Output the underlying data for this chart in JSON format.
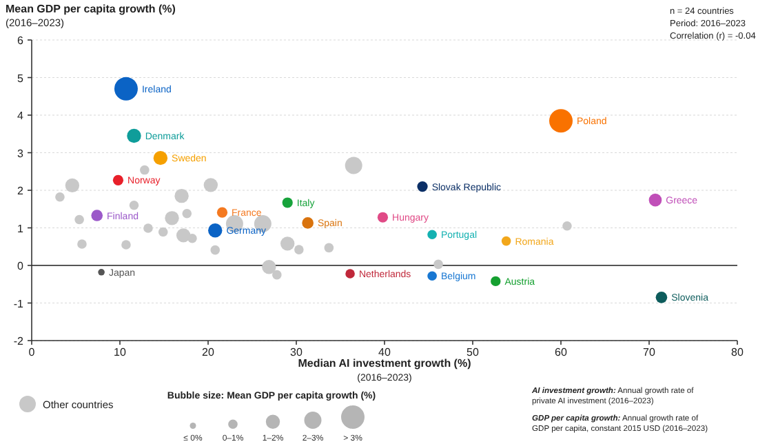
{
  "chart_data": {
    "type": "bubble",
    "xlabel": "Median AI investment growth (%)\n(2016–2023)",
    "ylabel": "Mean GDP per capita growth (%)\n(2016–2023)",
    "xlim": [
      0,
      80
    ],
    "ylim": [
      -2,
      6
    ],
    "xticks": [
      0,
      10,
      20,
      30,
      40,
      50,
      60,
      70,
      80
    ],
    "yticks": [
      -2,
      -1,
      0,
      1,
      2,
      3,
      4,
      5,
      6
    ],
    "grid": "y",
    "marker": "circle",
    "legend": "bottom left",
    "legend_title": "Bubble size: Mean GDP per capita growth (%)",
    "size_legend": [
      {
        "value": 0.07,
        "label": "≤ 0%"
      },
      {
        "value": 0.16,
        "label": "0–1%"
      },
      {
        "value": 0.36,
        "label": "1–2%"
      },
      {
        "value": 0.54,
        "label": "2–3%"
      },
      {
        "value": 1,
        "label": "> 3%"
      }
    ],
    "ref_lines": [
      {
        "axis": "y",
        "value": 0,
        "color": "#555555"
      }
    ],
    "annotations": [
      "n = 24 countries",
      "Period: 2016–2023",
      "Correlation (r) = -0.04",
      "AI investment growth: Annual growth rate of private AI investment (2016–2023)",
      "GDP per capita growth: Annual growth rate of GDP per capita, constant 2015 USD (2016–2023)"
    ],
    "series": [
      {
        "name": "Other countries",
        "color": "#c8c8c8",
        "x": [
          36.5,
          12.8,
          4.6,
          20.3,
          3.2,
          17,
          11.6,
          5.4,
          15.9,
          17.6,
          23,
          26.2,
          13.2,
          14.9,
          17.2,
          18.2,
          5.7,
          10.7,
          20.8,
          29,
          30.3,
          33.7,
          26.9,
          27.8,
          60.7,
          46.1
        ],
        "values": [
          2.66,
          2.54,
          2.13,
          2.14,
          1.82,
          1.85,
          1.6,
          1.22,
          1.26,
          1.38,
          1.11,
          1.11,
          0.99,
          0.89,
          0.8,
          0.72,
          0.57,
          0.55,
          0.41,
          0.58,
          0.42,
          0.47,
          -0.04,
          -0.25,
          1.05,
          0.03
        ],
        "sizes": [
          0.54,
          0.16,
          0.36,
          0.36,
          0.16,
          0.36,
          0.16,
          0.16,
          0.36,
          0.16,
          0.54,
          0.54,
          0.16,
          0.16,
          0.36,
          0.16,
          0.16,
          0.16,
          0.16,
          0.36,
          0.16,
          0.16,
          0.36,
          0.16,
          0.16,
          0.16
        ]
      },
      {
        "name": "Ireland",
        "color": "#0b63c5",
        "x": [
          10.7
        ],
        "values": [
          4.7
        ],
        "sizes": [
          1
        ]
      },
      {
        "name": "Denmark",
        "color": "#0f9d9a",
        "x": [
          11.6
        ],
        "values": [
          3.45
        ],
        "sizes": [
          0.36
        ]
      },
      {
        "name": "Sweden",
        "color": "#f5a000",
        "x": [
          14.6
        ],
        "values": [
          2.86
        ],
        "sizes": [
          0.36
        ]
      },
      {
        "name": "Norway",
        "color": "#e8202a",
        "x": [
          9.8
        ],
        "values": [
          2.27
        ],
        "sizes": [
          0.2
        ]
      },
      {
        "name": "Finland",
        "color": "#9b59c9",
        "x": [
          7.4
        ],
        "values": [
          1.33
        ],
        "sizes": [
          0.24
        ]
      },
      {
        "name": "France",
        "color": "#f47920",
        "x": [
          21.6
        ],
        "values": [
          1.41
        ],
        "sizes": [
          0.2
        ]
      },
      {
        "name": "Germany",
        "color": "#0b63c5",
        "x": [
          20.8
        ],
        "values": [
          0.93
        ],
        "sizes": [
          0.36
        ]
      },
      {
        "name": "Italy",
        "color": "#17a33b",
        "x": [
          29
        ],
        "values": [
          1.67
        ],
        "sizes": [
          0.2
        ]
      },
      {
        "name": "Spain",
        "color": "#d9730d",
        "x": [
          31.3
        ],
        "values": [
          1.13
        ],
        "sizes": [
          0.24
        ]
      },
      {
        "name": "Japan",
        "color": "#555555",
        "x": [
          7.9
        ],
        "values": [
          -0.18
        ],
        "sizes": [
          0.08
        ]
      },
      {
        "name": "Netherlands",
        "color": "#c0283a",
        "x": [
          36.1
        ],
        "values": [
          -0.22
        ],
        "sizes": [
          0.16
        ]
      },
      {
        "name": "Hungary",
        "color": "#e04a86",
        "x": [
          39.8
        ],
        "values": [
          1.28
        ],
        "sizes": [
          0.2
        ]
      },
      {
        "name": "Portugal",
        "color": "#14b1b1",
        "x": [
          45.4
        ],
        "values": [
          0.82
        ],
        "sizes": [
          0.16
        ]
      },
      {
        "name": "Romania",
        "color": "#f2a71b",
        "x": [
          53.8
        ],
        "values": [
          0.65
        ],
        "sizes": [
          0.16
        ]
      },
      {
        "name": "Belgium",
        "color": "#1877d2",
        "x": [
          45.4
        ],
        "values": [
          -0.28
        ],
        "sizes": [
          0.16
        ]
      },
      {
        "name": "Austria",
        "color": "#15a030",
        "x": [
          52.6
        ],
        "values": [
          -0.42
        ],
        "sizes": [
          0.18
        ]
      },
      {
        "name": "Slovenia",
        "color": "#0d5c5c",
        "x": [
          71.4
        ],
        "values": [
          -0.85
        ],
        "sizes": [
          0.24
        ]
      },
      {
        "name": "Greece",
        "color": "#c04fb8",
        "x": [
          70.7
        ],
        "values": [
          1.74
        ],
        "sizes": [
          0.3
        ]
      },
      {
        "name": "Slovak Republic",
        "color": "#0b2f66",
        "x": [
          44.3
        ],
        "values": [
          2.1
        ],
        "sizes": [
          0.2
        ]
      },
      {
        "name": "Poland",
        "color": "#f97200",
        "x": [
          60
        ],
        "values": [
          3.85
        ],
        "sizes": [
          1
        ]
      }
    ]
  }
}
